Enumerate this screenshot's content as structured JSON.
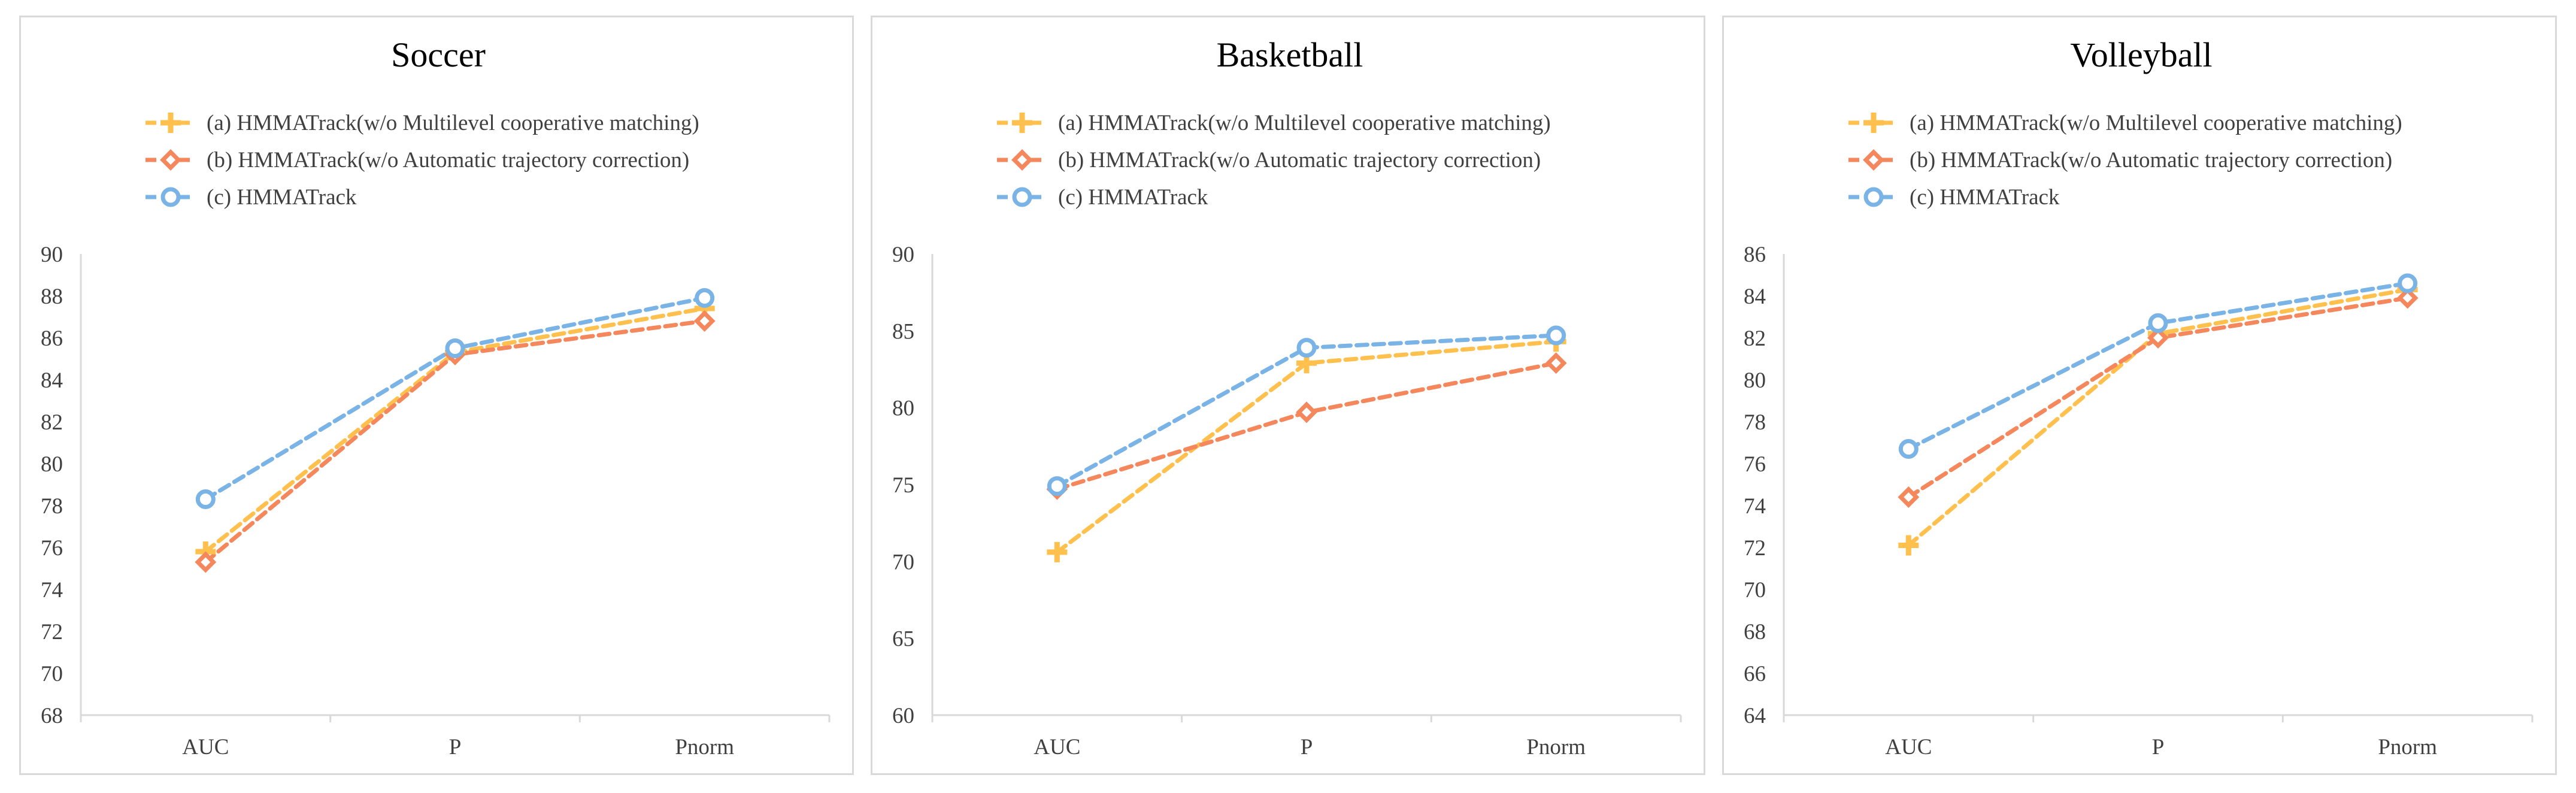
{
  "chart_data": [
    {
      "type": "line",
      "title": "Soccer",
      "categories": [
        "AUC",
        "P",
        "Pnorm"
      ],
      "ylim": [
        68,
        90
      ],
      "ytick_step": 2,
      "yticks": [
        "90",
        "88",
        "86",
        "84",
        "82",
        "80",
        "78",
        "76",
        "74",
        "72",
        "70",
        "68"
      ],
      "grid": false,
      "legend_position": "top",
      "series": [
        {
          "name": "(a) HMMATrack(w/o Multilevel cooperative matching)",
          "marker": "plus",
          "color": "#ffc04d",
          "values": [
            75.8,
            85.3,
            87.4
          ]
        },
        {
          "name": "(b) HMMATrack(w/o Automatic trajectory correction)",
          "marker": "diamond",
          "color": "#f4875c",
          "values": [
            75.3,
            85.2,
            86.8
          ]
        },
        {
          "name": "(c) HMMATrack",
          "marker": "circle",
          "color": "#7ab3e6",
          "values": [
            78.3,
            85.5,
            87.9
          ]
        }
      ]
    },
    {
      "type": "line",
      "title": "Basketball",
      "categories": [
        "AUC",
        "P",
        "Pnorm"
      ],
      "ylim": [
        60,
        90
      ],
      "ytick_step": 5,
      "yticks": [
        "90",
        "85",
        "80",
        "75",
        "70",
        "65",
        "60"
      ],
      "grid": false,
      "legend_position": "top",
      "series": [
        {
          "name": "(a) HMMATrack(w/o Multilevel cooperative matching)",
          "marker": "plus",
          "color": "#ffc04d",
          "values": [
            70.6,
            82.9,
            84.3
          ]
        },
        {
          "name": "(b) HMMATrack(w/o Automatic trajectory correction)",
          "marker": "diamond",
          "color": "#f4875c",
          "values": [
            74.7,
            79.7,
            82.9
          ]
        },
        {
          "name": "(c) HMMATrack",
          "marker": "circle",
          "color": "#7ab3e6",
          "values": [
            74.9,
            83.9,
            84.7
          ]
        }
      ]
    },
    {
      "type": "line",
      "title": "Volleyball",
      "categories": [
        "AUC",
        "P",
        "Pnorm"
      ],
      "ylim": [
        64,
        86
      ],
      "ytick_step": 2,
      "yticks": [
        "86",
        "84",
        "82",
        "80",
        "78",
        "76",
        "74",
        "72",
        "70",
        "68",
        "66",
        "64"
      ],
      "grid": false,
      "legend_position": "top",
      "series": [
        {
          "name": "(a) HMMATrack(w/o Multilevel cooperative matching)",
          "marker": "plus",
          "color": "#ffc04d",
          "values": [
            72.1,
            82.2,
            84.3
          ]
        },
        {
          "name": "(b) HMMATrack(w/o Automatic trajectory correction)",
          "marker": "diamond",
          "color": "#f4875c",
          "values": [
            74.4,
            82.0,
            83.9
          ]
        },
        {
          "name": "(c) HMMATrack",
          "marker": "circle",
          "color": "#7ab3e6",
          "values": [
            76.7,
            82.7,
            84.6
          ]
        }
      ]
    }
  ]
}
